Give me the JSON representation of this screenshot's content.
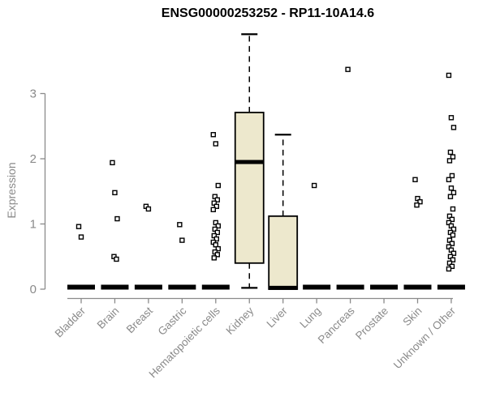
{
  "chart_data": {
    "type": "boxplot",
    "title": "ENSG00000253252 - RP11-10A14.6",
    "ylabel": "Expression",
    "xlabel": "",
    "yticks": [
      0,
      1,
      2,
      3
    ],
    "ylim": [
      0,
      3.95
    ],
    "grid": false,
    "legend": "none",
    "colors": {
      "box_fill": "#ede8cd",
      "box_stroke": "#000000",
      "median": "#000000",
      "outlier_stroke": "#000000",
      "axis": "#8a8a8a",
      "title": "#000000",
      "background": "#ffffff"
    },
    "categories": [
      "Bladder",
      "Brain",
      "Breast",
      "Gastric",
      "Hematopoietic cells",
      "Kidney",
      "Liver",
      "Lung",
      "Pancreas",
      "Prostate",
      "Skin",
      "Unknown / Other"
    ],
    "series": [
      {
        "category": "Bladder",
        "q1": 0,
        "median": 0,
        "q3": 0,
        "whisker_low": 0,
        "whisker_high": 0,
        "outliers": [
          0.96,
          0.8
        ]
      },
      {
        "category": "Brain",
        "q1": 0,
        "median": 0,
        "q3": 0,
        "whisker_low": 0,
        "whisker_high": 0,
        "outliers": [
          1.94,
          1.48,
          1.08,
          0.5,
          0.46
        ]
      },
      {
        "category": "Breast",
        "q1": 0,
        "median": 0,
        "q3": 0,
        "whisker_low": 0,
        "whisker_high": 0,
        "outliers": [
          1.27,
          1.23
        ]
      },
      {
        "category": "Gastric",
        "q1": 0,
        "median": 0,
        "q3": 0,
        "whisker_low": 0,
        "whisker_high": 0,
        "outliers": [
          0.99,
          0.75
        ]
      },
      {
        "category": "Hematopoietic cells",
        "q1": 0,
        "median": 0,
        "q3": 0,
        "whisker_low": 0,
        "whisker_high": 0,
        "outliers": [
          2.37,
          2.23,
          1.59,
          1.42,
          1.37,
          1.32,
          1.27,
          1.22,
          1.02,
          0.97,
          0.92,
          0.87,
          0.82,
          0.77,
          0.72,
          0.68,
          0.62,
          0.57,
          0.53,
          0.48
        ]
      },
      {
        "category": "Kidney",
        "q1": 0.4,
        "median": 1.95,
        "q3": 2.71,
        "whisker_low": 0.02,
        "whisker_high": 3.91,
        "outliers": []
      },
      {
        "category": "Liver",
        "q1": 0,
        "median": 0.02,
        "q3": 1.12,
        "whisker_low": 0,
        "whisker_high": 2.37,
        "outliers": []
      },
      {
        "category": "Lung",
        "q1": 0,
        "median": 0,
        "q3": 0,
        "whisker_low": 0,
        "whisker_high": 0,
        "outliers": [
          1.59
        ]
      },
      {
        "category": "Pancreas",
        "q1": 0,
        "median": 0,
        "q3": 0,
        "whisker_low": 0,
        "whisker_high": 0,
        "outliers": [
          3.37
        ]
      },
      {
        "category": "Prostate",
        "q1": 0,
        "median": 0,
        "q3": 0,
        "whisker_low": 0,
        "whisker_high": 0,
        "outliers": []
      },
      {
        "category": "Skin",
        "q1": 0,
        "median": 0,
        "q3": 0,
        "whisker_low": 0,
        "whisker_high": 0,
        "outliers": [
          1.68,
          1.39,
          1.34,
          1.29
        ]
      },
      {
        "category": "Unknown / Other",
        "q1": 0,
        "median": 0,
        "q3": 0,
        "whisker_low": 0,
        "whisker_high": 0,
        "outliers": [
          3.28,
          2.63,
          2.48,
          2.1,
          2.03,
          1.97,
          1.74,
          1.68,
          1.55,
          1.48,
          1.42,
          1.23,
          1.12,
          1.07,
          1.02,
          0.97,
          0.92,
          0.87,
          0.83,
          0.75,
          0.7,
          0.65,
          0.6,
          0.55,
          0.5,
          0.45,
          0.4,
          0.35,
          0.31
        ]
      }
    ]
  }
}
